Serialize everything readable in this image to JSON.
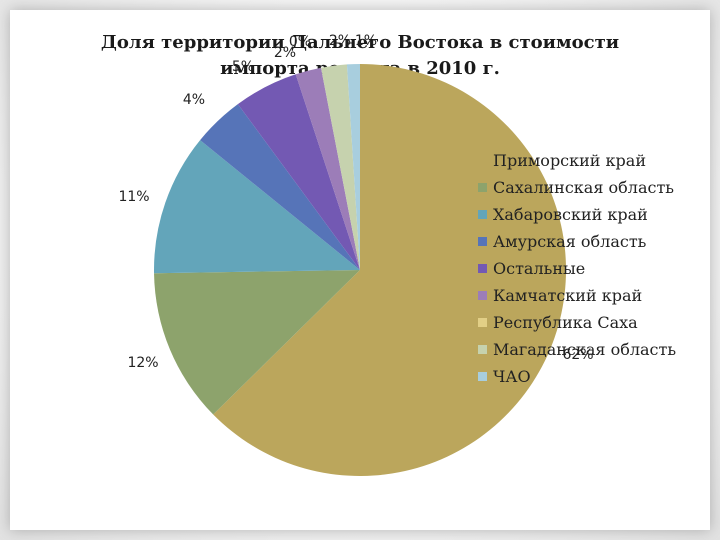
{
  "chart_data": {
    "type": "pie",
    "title": "Доля территории Дальнего Востока в стоимости импорта региона в 2010 г.",
    "categories": [
      "Приморский край",
      "Сахалинская область",
      "Хабаровский край",
      "Амурская область",
      "Остальные",
      "Камчатский край",
      "Республика Саха",
      "Магаданская область",
      "ЧАО"
    ],
    "values": [
      62,
      12,
      11,
      4,
      5,
      2,
      0,
      2,
      1
    ],
    "labels": [
      "62%",
      "12%",
      "11%",
      "4%",
      "5%",
      "2%",
      "0%",
      "2%",
      "1%"
    ],
    "colors": [
      "#bba65c",
      "#8da36c",
      "#63a5ba",
      "#5674b8",
      "#7359b3",
      "#9c7db8",
      "#e2cf86",
      "#c6d2ae",
      "#a8cede"
    ],
    "legend_position": "right"
  }
}
